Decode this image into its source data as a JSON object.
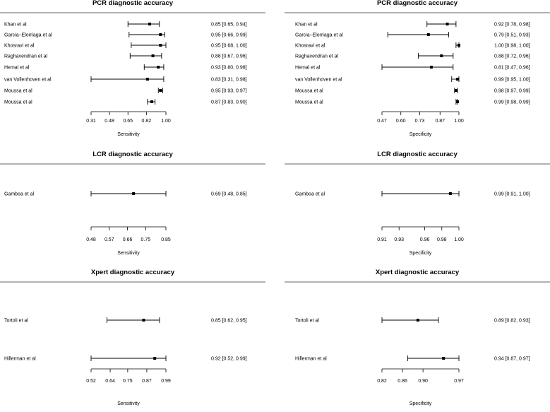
{
  "colors": {
    "ink": "#000000",
    "rule": "#333333",
    "background": "#ffffff"
  },
  "chart_data": [
    {
      "type": "forest",
      "title": "PCR diagnostic accuracy",
      "xlabel": "Sensitivity",
      "xlim": [
        0.31,
        1.0
      ],
      "ticks": [
        "0.31",
        "0.48",
        "0.65",
        "0.82",
        "1.00"
      ],
      "rows": [
        {
          "study": "Khan et al",
          "est": 0.85,
          "lo": 0.65,
          "hi": 0.94,
          "text": "0.85 [0.65, 0.94]"
        },
        {
          "study": "Garcia–Elorriaga et al",
          "est": 0.95,
          "lo": 0.66,
          "hi": 0.99,
          "text": "0.95 [0.66, 0.99]"
        },
        {
          "study": "Khosravi et al",
          "est": 0.95,
          "lo": 0.68,
          "hi": 1.0,
          "text": "0.95 [0.68, 1.00]"
        },
        {
          "study": "Raghavendran et al",
          "est": 0.88,
          "lo": 0.67,
          "hi": 0.96,
          "text": "0.88 [0.67, 0.96]"
        },
        {
          "study": "Hemal et al",
          "est": 0.93,
          "lo": 0.8,
          "hi": 0.98,
          "text": "0.93 [0.80, 0.98]"
        },
        {
          "study": "van Vollenhoven et al",
          "est": 0.83,
          "lo": 0.31,
          "hi": 0.98,
          "text": "0.83 [0.31, 0.98]"
        },
        {
          "study": "Moussa et al",
          "est": 0.95,
          "lo": 0.93,
          "hi": 0.97,
          "text": "0.95 [0.93, 0.97]"
        },
        {
          "study": "Moussa et al",
          "est": 0.87,
          "lo": 0.83,
          "hi": 0.9,
          "text": "0.87 [0.83, 0.90]"
        }
      ]
    },
    {
      "type": "forest",
      "title": "PCR diagnostic accuracy",
      "xlabel": "Specificity",
      "xlim": [
        0.47,
        1.0
      ],
      "ticks": [
        "0.47",
        "0.60",
        "0.73",
        "0.87",
        "1.00"
      ],
      "rows": [
        {
          "study": "Khan et al",
          "est": 0.92,
          "lo": 0.78,
          "hi": 0.98,
          "text": "0.92 [0.78, 0.98]"
        },
        {
          "study": "Garcia–Elorriaga et al",
          "est": 0.79,
          "lo": 0.51,
          "hi": 0.93,
          "text": "0.79 [0.51, 0.93]"
        },
        {
          "study": "Khosravi et al",
          "est": 1.0,
          "lo": 0.98,
          "hi": 1.0,
          "text": "1.00 [0.98, 1.00]"
        },
        {
          "study": "Raghavendran et al",
          "est": 0.88,
          "lo": 0.72,
          "hi": 0.96,
          "text": "0.88 [0.72, 0.96]"
        },
        {
          "study": "Hemal et al",
          "est": 0.81,
          "lo": 0.47,
          "hi": 0.96,
          "text": "0.81 [0.47, 0.96]"
        },
        {
          "study": "van Vollenhoven et al",
          "est": 0.99,
          "lo": 0.95,
          "hi": 1.0,
          "text": "0.99 [0.95, 1.00]"
        },
        {
          "study": "Moussa et al",
          "est": 0.98,
          "lo": 0.97,
          "hi": 0.99,
          "text": "0.98 [0.97, 0.99]"
        },
        {
          "study": "Moussa et al",
          "est": 0.99,
          "lo": 0.98,
          "hi": 0.99,
          "text": "0.99 [0.98, 0.99]"
        }
      ]
    },
    {
      "type": "forest",
      "title": "LCR diagnostic accuracy",
      "xlabel": "Sensitivity",
      "xlim": [
        0.48,
        0.85
      ],
      "ticks": [
        "0.48",
        "0.57",
        "0.66",
        "0.75",
        "0.85"
      ],
      "rows": [
        {
          "study": "Gamboa et al",
          "est": 0.69,
          "lo": 0.48,
          "hi": 0.85,
          "text": "0.69 [0.48, 0.85]"
        }
      ]
    },
    {
      "type": "forest",
      "title": "LCR diagnostic accuracy",
      "xlabel": "Specificity",
      "xlim": [
        0.91,
        1.0
      ],
      "ticks": [
        "0.91",
        "0.93",
        "0.96",
        "0.98",
        "1.00"
      ],
      "rows": [
        {
          "study": "Gamboa et al",
          "est": 0.99,
          "lo": 0.91,
          "hi": 1.0,
          "text": "0.99 [0.91, 1.00]"
        }
      ]
    },
    {
      "type": "forest",
      "title": "Xpert diagnostic accuracy",
      "xlabel": "Sensitivity",
      "xlim": [
        0.52,
        0.99
      ],
      "ticks": [
        "0.52",
        "0.64",
        "0.75",
        "0.87",
        "0.99"
      ],
      "rows": [
        {
          "study": "Tortoli et al",
          "est": 0.85,
          "lo": 0.62,
          "hi": 0.95,
          "text": "0.85 [0.62, 0.95]"
        },
        {
          "study": "Hillerman et al",
          "est": 0.92,
          "lo": 0.52,
          "hi": 0.99,
          "text": "0.92 [0.52, 0.99]"
        }
      ]
    },
    {
      "type": "forest",
      "title": "Xpert diagnostic accuracy",
      "xlabel": "Specificity",
      "xlim": [
        0.82,
        0.97
      ],
      "ticks": [
        "0.82",
        "0.86",
        "0.90",
        "0.97"
      ],
      "tick_values": [
        0.82,
        0.86,
        0.9,
        0.97
      ],
      "rows": [
        {
          "study": "Tortoli et al",
          "est": 0.89,
          "lo": 0.82,
          "hi": 0.93,
          "text": "0.89 [0.82, 0.93]"
        },
        {
          "study": "Hillerman et al",
          "est": 0.94,
          "lo": 0.87,
          "hi": 0.97,
          "text": "0.94 [0.87, 0.97]"
        }
      ]
    }
  ]
}
